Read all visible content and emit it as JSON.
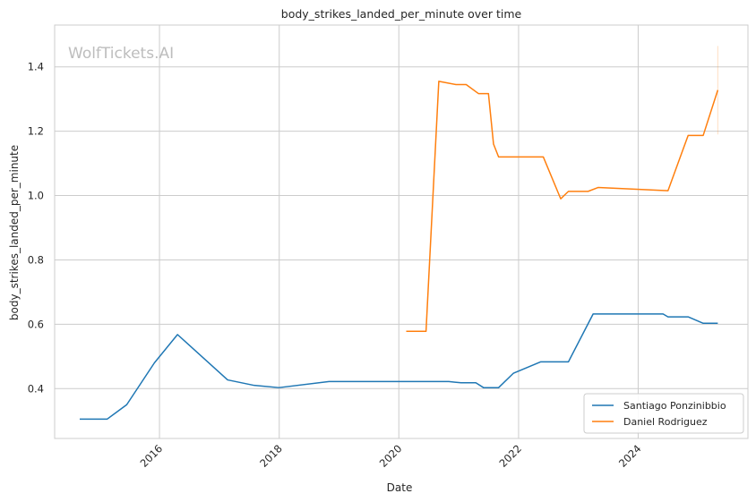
{
  "chart_data": {
    "type": "line",
    "title": "body_strikes_landed_per_minute over time",
    "xlabel": "Date",
    "ylabel": "body_strikes_landed_per_minute",
    "watermark": "WolfTickets.AI",
    "xlim": [
      "2014-04-01",
      "2025-11-01"
    ],
    "ylim": [
      0.245,
      1.53
    ],
    "x_ticks": [
      "2016",
      "2018",
      "2020",
      "2022",
      "2024"
    ],
    "y_ticks": [
      "0.4",
      "0.6",
      "0.8",
      "1.0",
      "1.2",
      "1.4"
    ],
    "grid": true,
    "legend_position": "lower-right",
    "series": [
      {
        "name": "Santiago Ponzinibbio",
        "color": "#1f77b4",
        "points": [
          [
            "2014-09-01",
            0.305
          ],
          [
            "2015-02-15",
            0.305
          ],
          [
            "2015-06-15",
            0.35
          ],
          [
            "2015-12-01",
            0.48
          ],
          [
            "2016-04-20",
            0.568
          ],
          [
            "2017-02-20",
            0.427
          ],
          [
            "2017-08-01",
            0.41
          ],
          [
            "2017-12-30",
            0.403
          ],
          [
            "2018-11-01",
            0.422
          ],
          [
            "2020-11-01",
            0.422
          ],
          [
            "2021-01-15",
            0.418
          ],
          [
            "2021-04-15",
            0.418
          ],
          [
            "2021-06-01",
            0.403
          ],
          [
            "2021-09-01",
            0.403
          ],
          [
            "2021-12-01",
            0.448
          ],
          [
            "2022-05-15",
            0.483
          ],
          [
            "2022-11-01",
            0.483
          ],
          [
            "2023-04-01",
            0.632
          ],
          [
            "2024-06-01",
            0.632
          ],
          [
            "2024-07-01",
            0.623
          ],
          [
            "2024-11-01",
            0.623
          ],
          [
            "2025-02-01",
            0.603
          ],
          [
            "2025-05-01",
            0.603
          ]
        ]
      },
      {
        "name": "Daniel Rodriguez",
        "color": "#ff7f0e",
        "points": [
          [
            "2020-02-15",
            0.578
          ],
          [
            "2020-06-15",
            0.578
          ],
          [
            "2020-09-01",
            1.355
          ],
          [
            "2020-12-15",
            1.345
          ],
          [
            "2021-02-15",
            1.345
          ],
          [
            "2021-05-01",
            1.317
          ],
          [
            "2021-07-01",
            1.317
          ],
          [
            "2021-08-01",
            1.16
          ],
          [
            "2021-09-01",
            1.12
          ],
          [
            "2022-06-01",
            1.12
          ],
          [
            "2022-09-15",
            0.99
          ],
          [
            "2022-11-01",
            1.013
          ],
          [
            "2023-03-01",
            1.013
          ],
          [
            "2023-05-01",
            1.025
          ],
          [
            "2024-07-01",
            1.015
          ],
          [
            "2024-11-01",
            1.187
          ],
          [
            "2025-02-01",
            1.187
          ],
          [
            "2025-05-01",
            1.328
          ]
        ],
        "error_bar": {
          "x": "2025-05-01",
          "low": 1.19,
          "high": 1.465
        }
      }
    ]
  }
}
